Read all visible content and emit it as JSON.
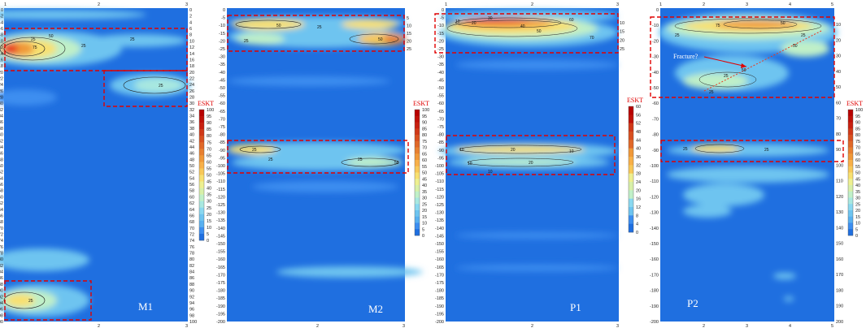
{
  "chart_data": [
    {
      "type": "heatmap",
      "name": "M1",
      "panel_label": "M1",
      "x_ticks_top": [
        "1",
        "2",
        "3"
      ],
      "x_ticks_bottom": [
        "2",
        "3"
      ],
      "y_ticks": [
        "0",
        "-2",
        "-4",
        "-6",
        "-8",
        "-10",
        "-12",
        "-14",
        "-16",
        "-18",
        "-20",
        "-22",
        "-24",
        "-26",
        "-28",
        "-30",
        "-32",
        "-34",
        "-36",
        "-38",
        "-40",
        "-42",
        "-44",
        "-46",
        "-48",
        "-50",
        "-52",
        "-54",
        "-56",
        "-58",
        "-60",
        "-62",
        "-64",
        "-66",
        "-68",
        "-70",
        "-72",
        "-74",
        "-76",
        "-78",
        "-80",
        "-82",
        "-84",
        "-86",
        "-88",
        "-90",
        "-92",
        "-94",
        "-96",
        "-98",
        "-100"
      ],
      "y_ticks_right": [
        "0",
        "2",
        "4",
        "6",
        "8",
        "10",
        "12",
        "14",
        "16",
        "18",
        "20",
        "22",
        "24",
        "26",
        "28",
        "30",
        "32",
        "34",
        "36",
        "38",
        "40",
        "42",
        "44",
        "46",
        "48",
        "50",
        "52",
        "54",
        "56",
        "58",
        "60",
        "62",
        "64",
        "66",
        "68",
        "70",
        "72",
        "74",
        "76",
        "78",
        "80",
        "82",
        "84",
        "86",
        "88",
        "90",
        "92",
        "94",
        "96",
        "98",
        "100"
      ],
      "ylim": [
        -100,
        0
      ],
      "contour_labels": [
        "25",
        "50",
        "75",
        "25",
        "25",
        "25",
        "25"
      ],
      "anomaly_boxes": 3
    },
    {
      "type": "heatmap",
      "name": "M2",
      "panel_label": "M2",
      "x_ticks_bottom": [
        "2",
        "3"
      ],
      "y_ticks": [
        "0",
        "-5",
        "-10",
        "-15",
        "-20",
        "-25",
        "-30",
        "-35",
        "-40",
        "-45",
        "-50",
        "-55",
        "-60",
        "-65",
        "-70",
        "-75",
        "-80",
        "-85",
        "-90",
        "-95",
        "-100",
        "-105",
        "-110",
        "-115",
        "-120",
        "-125",
        "-130",
        "-135",
        "-140",
        "-145",
        "-150",
        "-155",
        "-160",
        "-165",
        "-170",
        "-175",
        "-180",
        "-185",
        "-190",
        "-195",
        "-200"
      ],
      "y_ticks_right": [
        "5",
        "10",
        "15",
        "20",
        "25"
      ],
      "ylim": [
        -200,
        0
      ],
      "contour_labels": [
        "50",
        "25",
        "25",
        "50",
        "25",
        "25",
        "25",
        "50"
      ],
      "anomaly_boxes": 2
    },
    {
      "type": "heatmap",
      "name": "P1",
      "panel_label": "P1",
      "x_ticks_top": [
        "1",
        "2",
        "3"
      ],
      "x_ticks_bottom": [
        "2",
        "3"
      ],
      "y_ticks": [
        "0",
        "-5",
        "-10",
        "-15",
        "-20",
        "-25",
        "-30",
        "-35",
        "-40",
        "-45",
        "-50",
        "-55",
        "-60",
        "-65",
        "-70",
        "-75",
        "-80",
        "-85",
        "-90",
        "-95",
        "-100",
        "-105",
        "-110",
        "-115",
        "-120",
        "-125",
        "-130",
        "-135",
        "-140",
        "-145",
        "-150",
        "-155",
        "-160",
        "-165",
        "-170",
        "-175",
        "-180",
        "-185",
        "-190",
        "-195",
        "-200"
      ],
      "y_ticks_right": [
        "10",
        "15",
        "20",
        "25"
      ],
      "ylim": [
        -200,
        0
      ],
      "contour_labels": [
        "10",
        "20",
        "30",
        "40",
        "50",
        "60",
        "70",
        "10",
        "10",
        "10",
        "20",
        "20",
        "10"
      ],
      "anomaly_boxes": 2
    },
    {
      "type": "heatmap",
      "name": "P2",
      "panel_label": "P2",
      "x_ticks_top": [
        "1",
        "2",
        "3",
        "4",
        "5"
      ],
      "x_ticks_bottom": [
        "2",
        "3",
        "4",
        "5"
      ],
      "y_ticks": [
        "0",
        "-10",
        "-20",
        "-30",
        "-40",
        "-50",
        "-60",
        "-70",
        "-80",
        "-90",
        "-100",
        "-110",
        "-120",
        "-130",
        "-140",
        "-150",
        "-160",
        "-170",
        "-180",
        "-190",
        "-200"
      ],
      "y_ticks_right": [
        "10",
        "20",
        "30",
        "40",
        "50",
        "60",
        "70",
        "80",
        "90",
        "100",
        "110",
        "120",
        "130",
        "140",
        "150",
        "160",
        "170",
        "180",
        "190",
        "200"
      ],
      "ylim": [
        -200,
        0
      ],
      "contour_labels": [
        "75",
        "50",
        "25",
        "25",
        "50",
        "25",
        "50",
        "25",
        "25",
        "25"
      ],
      "annotation": "Fracture?",
      "anomaly_boxes": 2
    }
  ],
  "colorbars": [
    {
      "title": "ESKT",
      "labels": [
        "100",
        "95",
        "90",
        "85",
        "80",
        "75",
        "70",
        "65",
        "60",
        "55",
        "50",
        "45",
        "40",
        "35",
        "30",
        "25",
        "20",
        "15",
        "10",
        "5",
        "0"
      ]
    },
    {
      "title": "ESKT",
      "labels": [
        "100",
        "95",
        "90",
        "85",
        "80",
        "75",
        "70",
        "65",
        "60",
        "55",
        "50",
        "45",
        "40",
        "35",
        "30",
        "25",
        "20",
        "15",
        "10",
        "5",
        "0"
      ]
    },
    {
      "title": "ESKT",
      "labels": [
        "60",
        "56",
        "52",
        "48",
        "44",
        "40",
        "36",
        "32",
        "28",
        "24",
        "20",
        "16",
        "12",
        "8",
        "4",
        "0"
      ]
    },
    {
      "title": "ESKT",
      "labels": [
        "100",
        "95",
        "90",
        "85",
        "80",
        "75",
        "70",
        "65",
        "60",
        "55",
        "50",
        "45",
        "40",
        "35",
        "30",
        "25",
        "20",
        "15",
        "10",
        "5",
        "0"
      ]
    }
  ],
  "colors": {
    "background_field": "#1f6fe0",
    "low": "#3c8ef0",
    "mid_low": "#6ec4f0",
    "mid": "#a8e8d8",
    "mid_high": "#f0e878",
    "high": "#f0a040",
    "peak": "#e83a20",
    "box": "#e00000",
    "colorbar_scale": [
      "#1f6fe0",
      "#3c8ef0",
      "#58b0f0",
      "#6ec4f0",
      "#8ad8f0",
      "#a8e8e0",
      "#c0f0c8",
      "#d8f0a8",
      "#eef090",
      "#f8e070",
      "#f8c858",
      "#f8b048",
      "#f09838",
      "#e88030",
      "#e06828",
      "#d85020",
      "#d03818",
      "#c82010",
      "#c01008",
      "#b80000"
    ]
  }
}
